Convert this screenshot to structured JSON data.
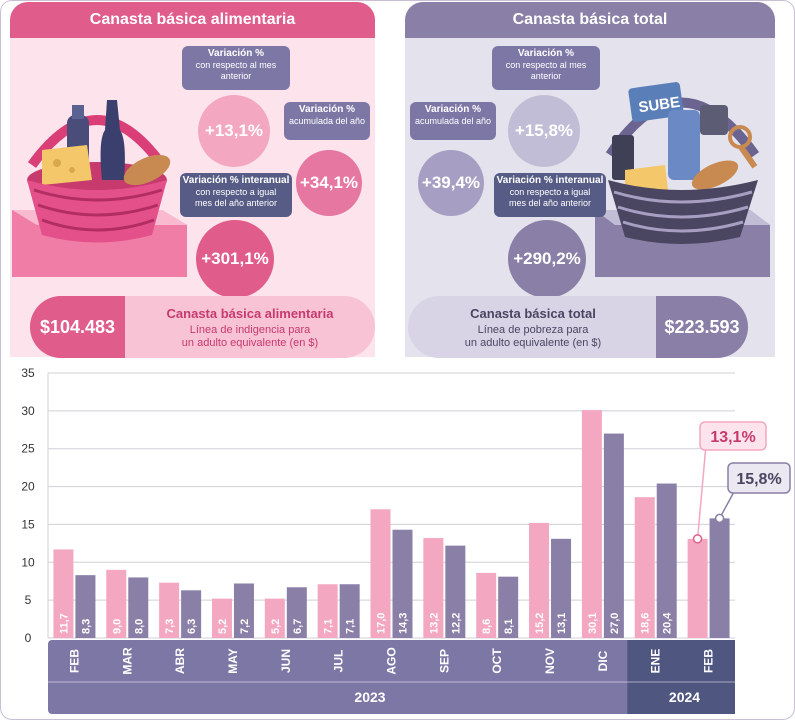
{
  "left_panel": {
    "title": "Canasta básica alimentaria",
    "monthly": {
      "label": "Variación %",
      "sub": "con respecto al mes anterior",
      "value": "+13,1%"
    },
    "accum": {
      "label": "Variación %",
      "sub": "acumulada del año",
      "value": "+34,1%"
    },
    "yoy": {
      "label": "Variación % interanual",
      "sub": "con respecto a igual mes del año anterior",
      "value": "+301,1%"
    },
    "amount": "$104.483",
    "name": "Canasta básica alimentaria",
    "desc1": "Línea de indigencia para",
    "desc2": "un adulto equivalente (en $)"
  },
  "right_panel": {
    "title": "Canasta básica total",
    "monthly": {
      "label": "Variación %",
      "sub": "con respecto al mes anterior",
      "value": "+15,8%"
    },
    "accum": {
      "label": "Variación %",
      "sub": "acumulada del año",
      "value": "+39,4%"
    },
    "yoy": {
      "label": "Variación % interanual",
      "sub": "con respecto a igual mes del año anterior",
      "value": "+290,2%"
    },
    "amount": "$223.593",
    "name": "Canasta básica total",
    "desc1": "Línea de pobreza para",
    "desc2": "un adulto equivalente (en $)",
    "card_text": "SUBE"
  },
  "colors": {
    "cba": "#f3a7c0",
    "cbt": "#8a7fa6",
    "cba_dark": "#e05c8a",
    "axis": "#7d77a6",
    "axis_2024": "#4f5680"
  },
  "chart_data": {
    "type": "bar",
    "categories": [
      "FEB",
      "MAR",
      "ABR",
      "MAY",
      "JUN",
      "JUL",
      "AGO",
      "SEP",
      "OCT",
      "NOV",
      "DIC",
      "ENE",
      "FEB"
    ],
    "series": [
      {
        "values": [
          11.7,
          9.0,
          7.3,
          5.2,
          5.2,
          7.1,
          17.0,
          13.2,
          8.6,
          15.2,
          30.1,
          18.6,
          13.1
        ],
        "labels": [
          "11,7",
          "9,0",
          "7,3",
          "5,2",
          "5,2",
          "7,1",
          "17,0",
          "13,2",
          "8,6",
          "15,2",
          "30,1",
          "18,6",
          ""
        ]
      },
      {
        "values": [
          8.3,
          8.0,
          6.3,
          7.2,
          6.7,
          7.1,
          14.3,
          12.2,
          8.1,
          13.1,
          27.0,
          20.4,
          15.8
        ],
        "labels": [
          "8,3",
          "8,0",
          "6,3",
          "7,2",
          "6,7",
          "7,1",
          "14,3",
          "12,2",
          "8,1",
          "13,1",
          "27,0",
          "20,4",
          ""
        ]
      }
    ],
    "callouts": [
      "13,1%",
      "15,8%"
    ],
    "years": [
      "2023",
      "2024"
    ],
    "yticks": [
      "0",
      "5",
      "10",
      "15",
      "20",
      "25",
      "30",
      "35"
    ],
    "ylim": [
      0,
      35
    ],
    "grid": true
  }
}
